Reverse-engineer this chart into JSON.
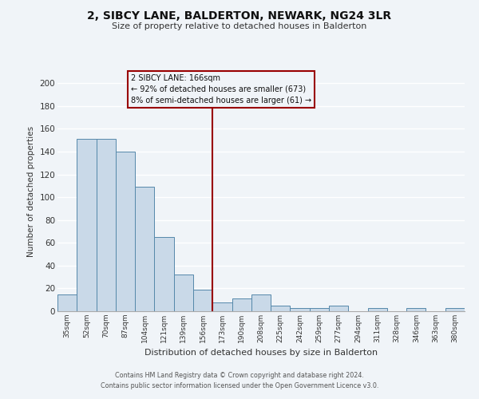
{
  "title": "2, SIBCY LANE, BALDERTON, NEWARK, NG24 3LR",
  "subtitle": "Size of property relative to detached houses in Balderton",
  "xlabel": "Distribution of detached houses by size in Balderton",
  "ylabel": "Number of detached properties",
  "bar_color": "#c9d9e8",
  "bar_edge_color": "#5588aa",
  "categories": [
    "35sqm",
    "52sqm",
    "70sqm",
    "87sqm",
    "104sqm",
    "121sqm",
    "139sqm",
    "156sqm",
    "173sqm",
    "190sqm",
    "208sqm",
    "225sqm",
    "242sqm",
    "259sqm",
    "277sqm",
    "294sqm",
    "311sqm",
    "328sqm",
    "346sqm",
    "363sqm",
    "380sqm"
  ],
  "values": [
    15,
    151,
    151,
    140,
    109,
    65,
    32,
    19,
    8,
    11,
    15,
    5,
    3,
    3,
    5,
    0,
    3,
    0,
    3,
    0,
    3
  ],
  "ylim": [
    0,
    210
  ],
  "yticks": [
    0,
    20,
    40,
    60,
    80,
    100,
    120,
    140,
    160,
    180,
    200
  ],
  "vline_x": 7.5,
  "vline_color": "#990000",
  "annotation_title": "2 SIBCY LANE: 166sqm",
  "annotation_line1": "← 92% of detached houses are smaller (673)",
  "annotation_line2": "8% of semi-detached houses are larger (61) →",
  "annotation_box_color": "#990000",
  "footer_line1": "Contains HM Land Registry data © Crown copyright and database right 2024.",
  "footer_line2": "Contains public sector information licensed under the Open Government Licence v3.0.",
  "background_color": "#f0f4f8",
  "grid_color": "#ffffff"
}
